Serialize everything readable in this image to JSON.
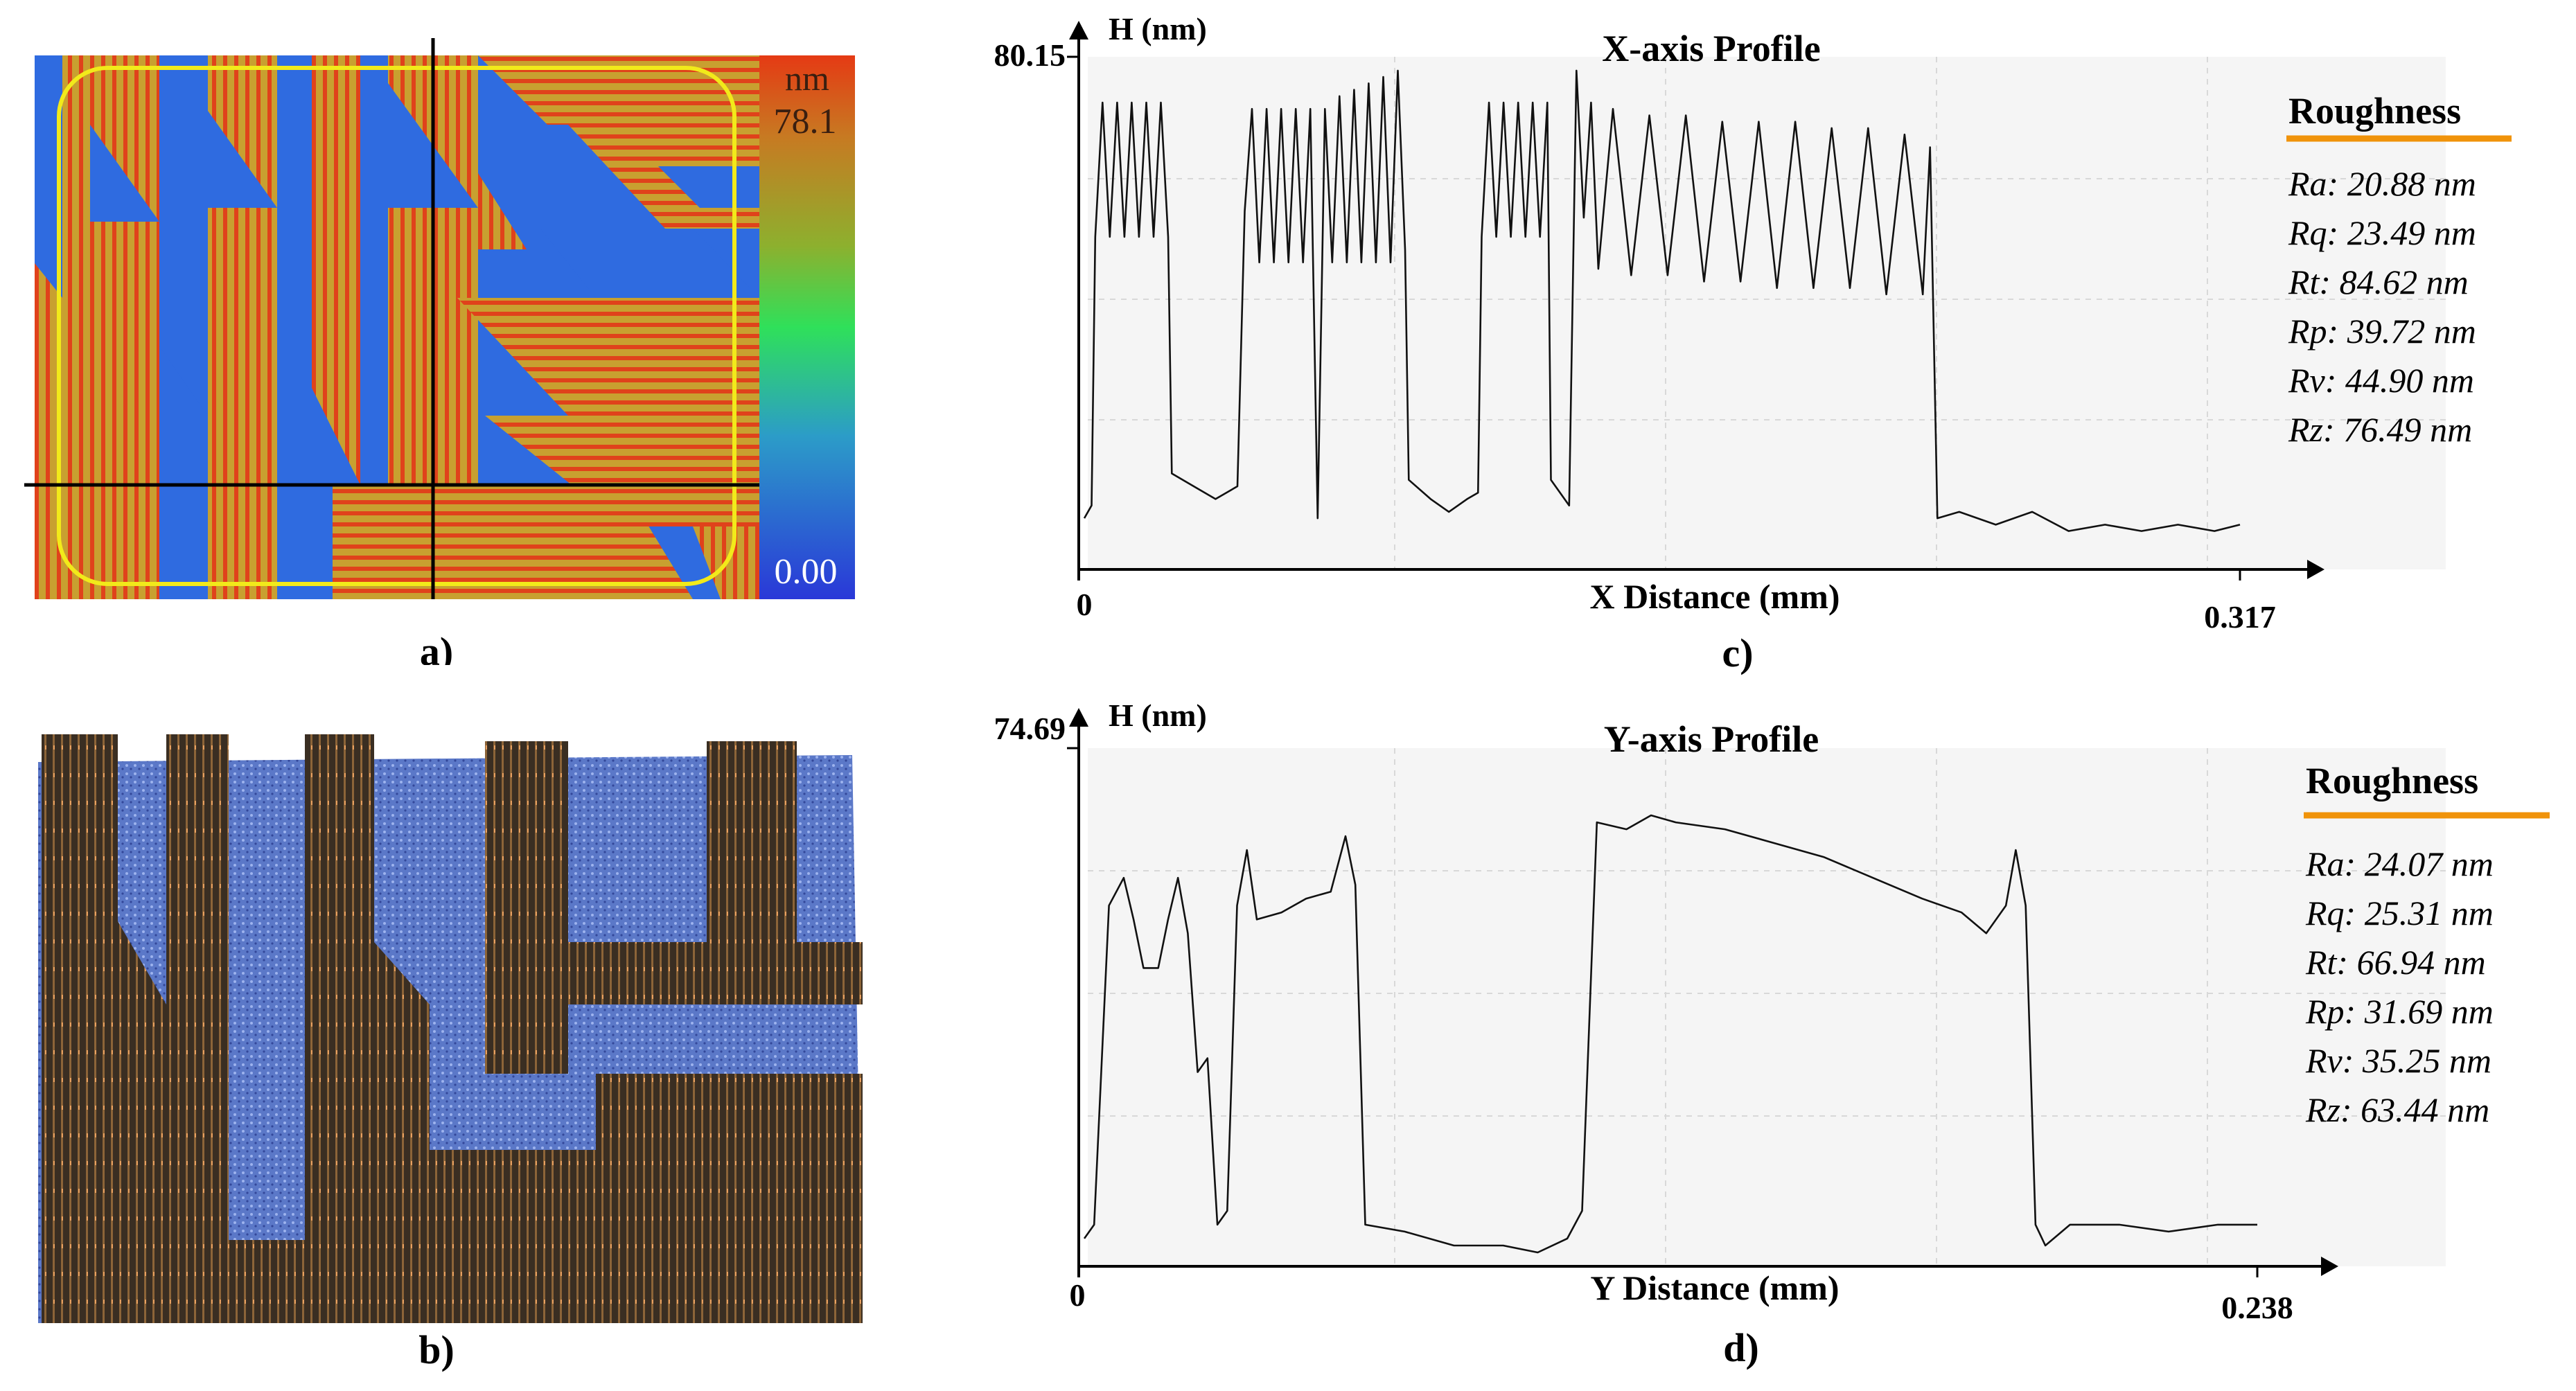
{
  "panels": {
    "a": {
      "label": "a)",
      "colorbar": {
        "unit": "nm",
        "max": "78.1",
        "min": "0.00"
      },
      "colors": {
        "high": "#E0421B",
        "mid": "#C8A030",
        "low": "#2F6BE0",
        "roi": "#F2EA1A",
        "crosshair": "#000000"
      }
    },
    "b": {
      "label": "b)"
    },
    "c": {
      "label": "c)"
    },
    "d": {
      "label": "d)"
    }
  },
  "chart_data": [
    {
      "type": "line",
      "panel": "c",
      "title": "X-axis Profile",
      "ylabel": "H (nm)",
      "xlabel": "X Distance (mm)",
      "x_start_label": "0",
      "x_end_label": "0.317",
      "ymax_label": "80.15",
      "xlim": [
        0,
        0.317
      ],
      "ylim": [
        0,
        80.15
      ],
      "series": [
        {
          "values": [
            {
              "x": 0.0,
              "y": 8
            },
            {
              "x": 0.002,
              "y": 10
            },
            {
              "x": 0.003,
              "y": 52
            },
            {
              "x": 0.005,
              "y": 73
            },
            {
              "x": 0.007,
              "y": 52
            },
            {
              "x": 0.009,
              "y": 73
            },
            {
              "x": 0.011,
              "y": 52
            },
            {
              "x": 0.013,
              "y": 73
            },
            {
              "x": 0.015,
              "y": 52
            },
            {
              "x": 0.017,
              "y": 73
            },
            {
              "x": 0.019,
              "y": 52
            },
            {
              "x": 0.021,
              "y": 73
            },
            {
              "x": 0.023,
              "y": 52
            },
            {
              "x": 0.024,
              "y": 15
            },
            {
              "x": 0.03,
              "y": 13
            },
            {
              "x": 0.036,
              "y": 11
            },
            {
              "x": 0.042,
              "y": 13
            },
            {
              "x": 0.044,
              "y": 56
            },
            {
              "x": 0.046,
              "y": 72
            },
            {
              "x": 0.048,
              "y": 48
            },
            {
              "x": 0.05,
              "y": 72
            },
            {
              "x": 0.052,
              "y": 48
            },
            {
              "x": 0.054,
              "y": 72
            },
            {
              "x": 0.056,
              "y": 48
            },
            {
              "x": 0.058,
              "y": 72
            },
            {
              "x": 0.06,
              "y": 48
            },
            {
              "x": 0.062,
              "y": 72
            },
            {
              "x": 0.064,
              "y": 8
            },
            {
              "x": 0.066,
              "y": 72
            },
            {
              "x": 0.068,
              "y": 48
            },
            {
              "x": 0.07,
              "y": 74
            },
            {
              "x": 0.072,
              "y": 48
            },
            {
              "x": 0.074,
              "y": 75
            },
            {
              "x": 0.076,
              "y": 48
            },
            {
              "x": 0.078,
              "y": 76
            },
            {
              "x": 0.08,
              "y": 48
            },
            {
              "x": 0.082,
              "y": 77
            },
            {
              "x": 0.084,
              "y": 48
            },
            {
              "x": 0.086,
              "y": 78
            },
            {
              "x": 0.088,
              "y": 50
            },
            {
              "x": 0.089,
              "y": 14
            },
            {
              "x": 0.095,
              "y": 11
            },
            {
              "x": 0.1,
              "y": 9
            },
            {
              "x": 0.105,
              "y": 11
            },
            {
              "x": 0.108,
              "y": 12
            },
            {
              "x": 0.109,
              "y": 52
            },
            {
              "x": 0.111,
              "y": 73
            },
            {
              "x": 0.113,
              "y": 52
            },
            {
              "x": 0.115,
              "y": 73
            },
            {
              "x": 0.117,
              "y": 52
            },
            {
              "x": 0.119,
              "y": 73
            },
            {
              "x": 0.121,
              "y": 52
            },
            {
              "x": 0.123,
              "y": 73
            },
            {
              "x": 0.125,
              "y": 52
            },
            {
              "x": 0.127,
              "y": 73
            },
            {
              "x": 0.128,
              "y": 14
            },
            {
              "x": 0.133,
              "y": 10
            },
            {
              "x": 0.135,
              "y": 78
            },
            {
              "x": 0.137,
              "y": 55
            },
            {
              "x": 0.139,
              "y": 73
            },
            {
              "x": 0.141,
              "y": 47
            },
            {
              "x": 0.145,
              "y": 72
            },
            {
              "x": 0.15,
              "y": 46
            },
            {
              "x": 0.155,
              "y": 71
            },
            {
              "x": 0.16,
              "y": 46
            },
            {
              "x": 0.165,
              "y": 71
            },
            {
              "x": 0.17,
              "y": 45
            },
            {
              "x": 0.175,
              "y": 70
            },
            {
              "x": 0.18,
              "y": 45
            },
            {
              "x": 0.185,
              "y": 70
            },
            {
              "x": 0.19,
              "y": 44
            },
            {
              "x": 0.195,
              "y": 70
            },
            {
              "x": 0.2,
              "y": 44
            },
            {
              "x": 0.205,
              "y": 69
            },
            {
              "x": 0.21,
              "y": 44
            },
            {
              "x": 0.215,
              "y": 69
            },
            {
              "x": 0.22,
              "y": 43
            },
            {
              "x": 0.225,
              "y": 68
            },
            {
              "x": 0.23,
              "y": 43
            },
            {
              "x": 0.232,
              "y": 66
            },
            {
              "x": 0.234,
              "y": 8
            },
            {
              "x": 0.24,
              "y": 9
            },
            {
              "x": 0.25,
              "y": 7
            },
            {
              "x": 0.26,
              "y": 9
            },
            {
              "x": 0.27,
              "y": 6
            },
            {
              "x": 0.28,
              "y": 7
            },
            {
              "x": 0.29,
              "y": 6
            },
            {
              "x": 0.3,
              "y": 7
            },
            {
              "x": 0.31,
              "y": 6
            },
            {
              "x": 0.317,
              "y": 7
            }
          ]
        }
      ]
    },
    {
      "type": "line",
      "panel": "d",
      "title": "Y-axis Profile",
      "ylabel": "H (nm)",
      "xlabel": "Y Distance (mm)",
      "x_start_label": "0",
      "x_end_label": "0.238",
      "ymax_label": "74.69",
      "xlim": [
        0,
        0.238
      ],
      "ylim": [
        0,
        74.69
      ],
      "series": [
        {
          "values": [
            {
              "x": 0.0,
              "y": 4
            },
            {
              "x": 0.002,
              "y": 6
            },
            {
              "x": 0.005,
              "y": 52
            },
            {
              "x": 0.008,
              "y": 56
            },
            {
              "x": 0.01,
              "y": 50
            },
            {
              "x": 0.012,
              "y": 43
            },
            {
              "x": 0.015,
              "y": 43
            },
            {
              "x": 0.017,
              "y": 50
            },
            {
              "x": 0.019,
              "y": 56
            },
            {
              "x": 0.021,
              "y": 48
            },
            {
              "x": 0.023,
              "y": 28
            },
            {
              "x": 0.025,
              "y": 30
            },
            {
              "x": 0.027,
              "y": 6
            },
            {
              "x": 0.029,
              "y": 8
            },
            {
              "x": 0.031,
              "y": 52
            },
            {
              "x": 0.033,
              "y": 60
            },
            {
              "x": 0.035,
              "y": 50
            },
            {
              "x": 0.04,
              "y": 51
            },
            {
              "x": 0.045,
              "y": 53
            },
            {
              "x": 0.05,
              "y": 54
            },
            {
              "x": 0.053,
              "y": 62
            },
            {
              "x": 0.055,
              "y": 55
            },
            {
              "x": 0.057,
              "y": 6
            },
            {
              "x": 0.065,
              "y": 5
            },
            {
              "x": 0.075,
              "y": 3
            },
            {
              "x": 0.085,
              "y": 3
            },
            {
              "x": 0.092,
              "y": 2
            },
            {
              "x": 0.098,
              "y": 4
            },
            {
              "x": 0.101,
              "y": 8
            },
            {
              "x": 0.104,
              "y": 64
            },
            {
              "x": 0.11,
              "y": 63
            },
            {
              "x": 0.115,
              "y": 65
            },
            {
              "x": 0.12,
              "y": 64
            },
            {
              "x": 0.13,
              "y": 63
            },
            {
              "x": 0.14,
              "y": 61
            },
            {
              "x": 0.15,
              "y": 59
            },
            {
              "x": 0.16,
              "y": 56
            },
            {
              "x": 0.17,
              "y": 53
            },
            {
              "x": 0.178,
              "y": 51
            },
            {
              "x": 0.183,
              "y": 48
            },
            {
              "x": 0.187,
              "y": 52
            },
            {
              "x": 0.189,
              "y": 60
            },
            {
              "x": 0.191,
              "y": 52
            },
            {
              "x": 0.193,
              "y": 6
            },
            {
              "x": 0.195,
              "y": 3
            },
            {
              "x": 0.2,
              "y": 6
            },
            {
              "x": 0.21,
              "y": 6
            },
            {
              "x": 0.22,
              "y": 5
            },
            {
              "x": 0.23,
              "y": 6
            },
            {
              "x": 0.238,
              "y": 6
            }
          ]
        }
      ]
    }
  ],
  "roughness": {
    "c": {
      "title": "Roughness",
      "items": [
        "Ra: 20.88 nm",
        "Rq: 23.49 nm",
        "Rt: 84.62 nm",
        "Rp: 39.72 nm",
        "Rv: 44.90 nm",
        "Rz: 76.49 nm"
      ]
    },
    "d": {
      "title": "Roughness",
      "items": [
        "Ra: 24.07 nm",
        "Rq: 25.31 nm",
        "Rt: 66.94 nm",
        "Rp: 31.69 nm",
        "Rv: 35.25 nm",
        "Rz: 63.44 nm"
      ]
    },
    "underline_color": "#F0930A"
  }
}
